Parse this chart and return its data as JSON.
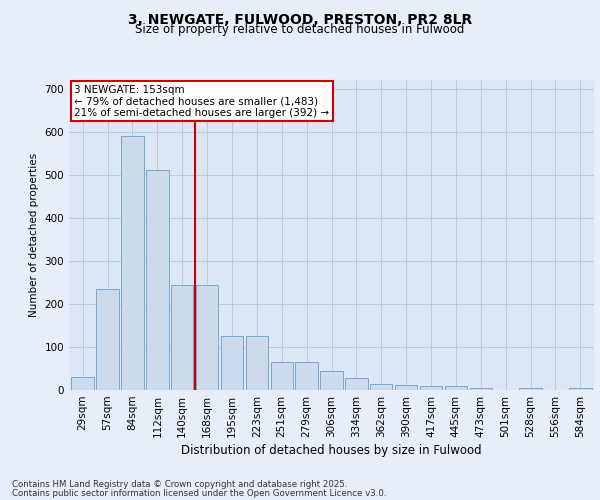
{
  "title": "3, NEWGATE, FULWOOD, PRESTON, PR2 8LR",
  "subtitle": "Size of property relative to detached houses in Fulwood",
  "xlabel": "Distribution of detached houses by size in Fulwood",
  "ylabel": "Number of detached properties",
  "categories": [
    "29sqm",
    "57sqm",
    "84sqm",
    "112sqm",
    "140sqm",
    "168sqm",
    "195sqm",
    "223sqm",
    "251sqm",
    "279sqm",
    "306sqm",
    "334sqm",
    "362sqm",
    "390sqm",
    "417sqm",
    "445sqm",
    "473sqm",
    "501sqm",
    "528sqm",
    "556sqm",
    "584sqm"
  ],
  "values": [
    30,
    235,
    590,
    510,
    245,
    245,
    125,
    125,
    65,
    65,
    45,
    28,
    15,
    12,
    10,
    10,
    5,
    0,
    5,
    0,
    5
  ],
  "bar_color": "#ccdaec",
  "bar_edge_color": "#7aa8cc",
  "vline_x": 4.5,
  "vline_color": "#cc0000",
  "annotation_text": "3 NEWGATE: 153sqm\n← 79% of detached houses are smaller (1,483)\n21% of semi-detached houses are larger (392) →",
  "annotation_box_color": "#ffffff",
  "annotation_box_edge": "#cc0000",
  "ylim": [
    0,
    720
  ],
  "yticks": [
    0,
    100,
    200,
    300,
    400,
    500,
    600,
    700
  ],
  "footer_line1": "Contains HM Land Registry data © Crown copyright and database right 2025.",
  "footer_line2": "Contains public sector information licensed under the Open Government Licence v3.0.",
  "bg_color": "#e8eef8",
  "plot_bg_color": "#dde6f4",
  "grid_color": "#b0bfd0"
}
